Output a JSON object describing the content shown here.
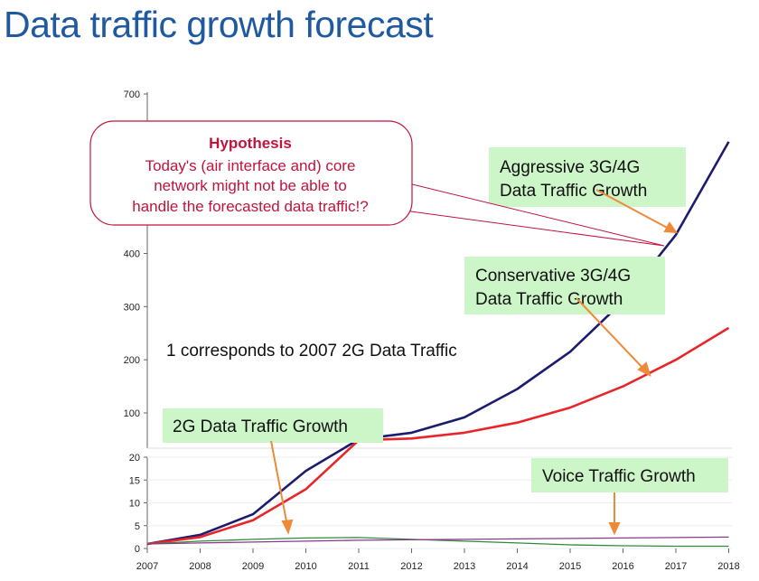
{
  "page_title": "Data traffic growth forecast",
  "chart_data": {
    "type": "line",
    "y_scale": "broken: 0-20 lower segment, 20-700 upper segment",
    "x": [
      "2007",
      "2008",
      "2009",
      "2010",
      "2011",
      "2012",
      "2013",
      "2014",
      "2015",
      "2016",
      "2017",
      "2018"
    ],
    "y_ticks_upper": [
      "700",
      "400",
      "300",
      "200",
      "100"
    ],
    "y_ticks_lower": [
      "20",
      "15",
      "10",
      "5",
      "0"
    ],
    "series": [
      {
        "key": "aggressive",
        "color": "#1c1c6e",
        "values": [
          1,
          3,
          7.5,
          17,
          40,
          55,
          90,
          145,
          215,
          310,
          435,
          610
        ]
      },
      {
        "key": "conservative",
        "color": "#e8262a",
        "values": [
          1,
          2.5,
          6.2,
          13,
          38,
          42,
          55,
          78,
          110,
          150,
          200,
          260
        ]
      },
      {
        "key": "twoG",
        "color": "#2e8b3d",
        "values": [
          1,
          1.6,
          2,
          2.3,
          2.4,
          2,
          1.6,
          1.2,
          0.8,
          0.6,
          0.5,
          0.5
        ]
      },
      {
        "key": "voice",
        "color": "#8a3a8a",
        "values": [
          1,
          1.2,
          1.4,
          1.6,
          1.8,
          1.9,
          2,
          2.1,
          2.2,
          2.3,
          2.4,
          2.5
        ]
      }
    ],
    "annotations": {
      "aggressive_line1": "Aggressive 3G/4G",
      "aggressive_line2": "Data Traffic Growth",
      "conservative_line1": "Conservative 3G/4G",
      "conservative_line2": "Data Traffic Growth",
      "twoG": "2G Data Traffic Growth",
      "voice": "Voice Traffic Growth",
      "note": "1 corresponds to 2007 2G Data Traffic"
    },
    "callout": {
      "title": "Hypothesis",
      "line1": "Today's (air interface and) core",
      "line2": "network might not be able to",
      "line3": "handle the forecasted data traffic!?"
    },
    "colors": {
      "label_bg": "#ccf5c8",
      "arrow": "#ee8a3a",
      "callout_text": "#c0143c",
      "callout_border": "#c0143c"
    }
  }
}
